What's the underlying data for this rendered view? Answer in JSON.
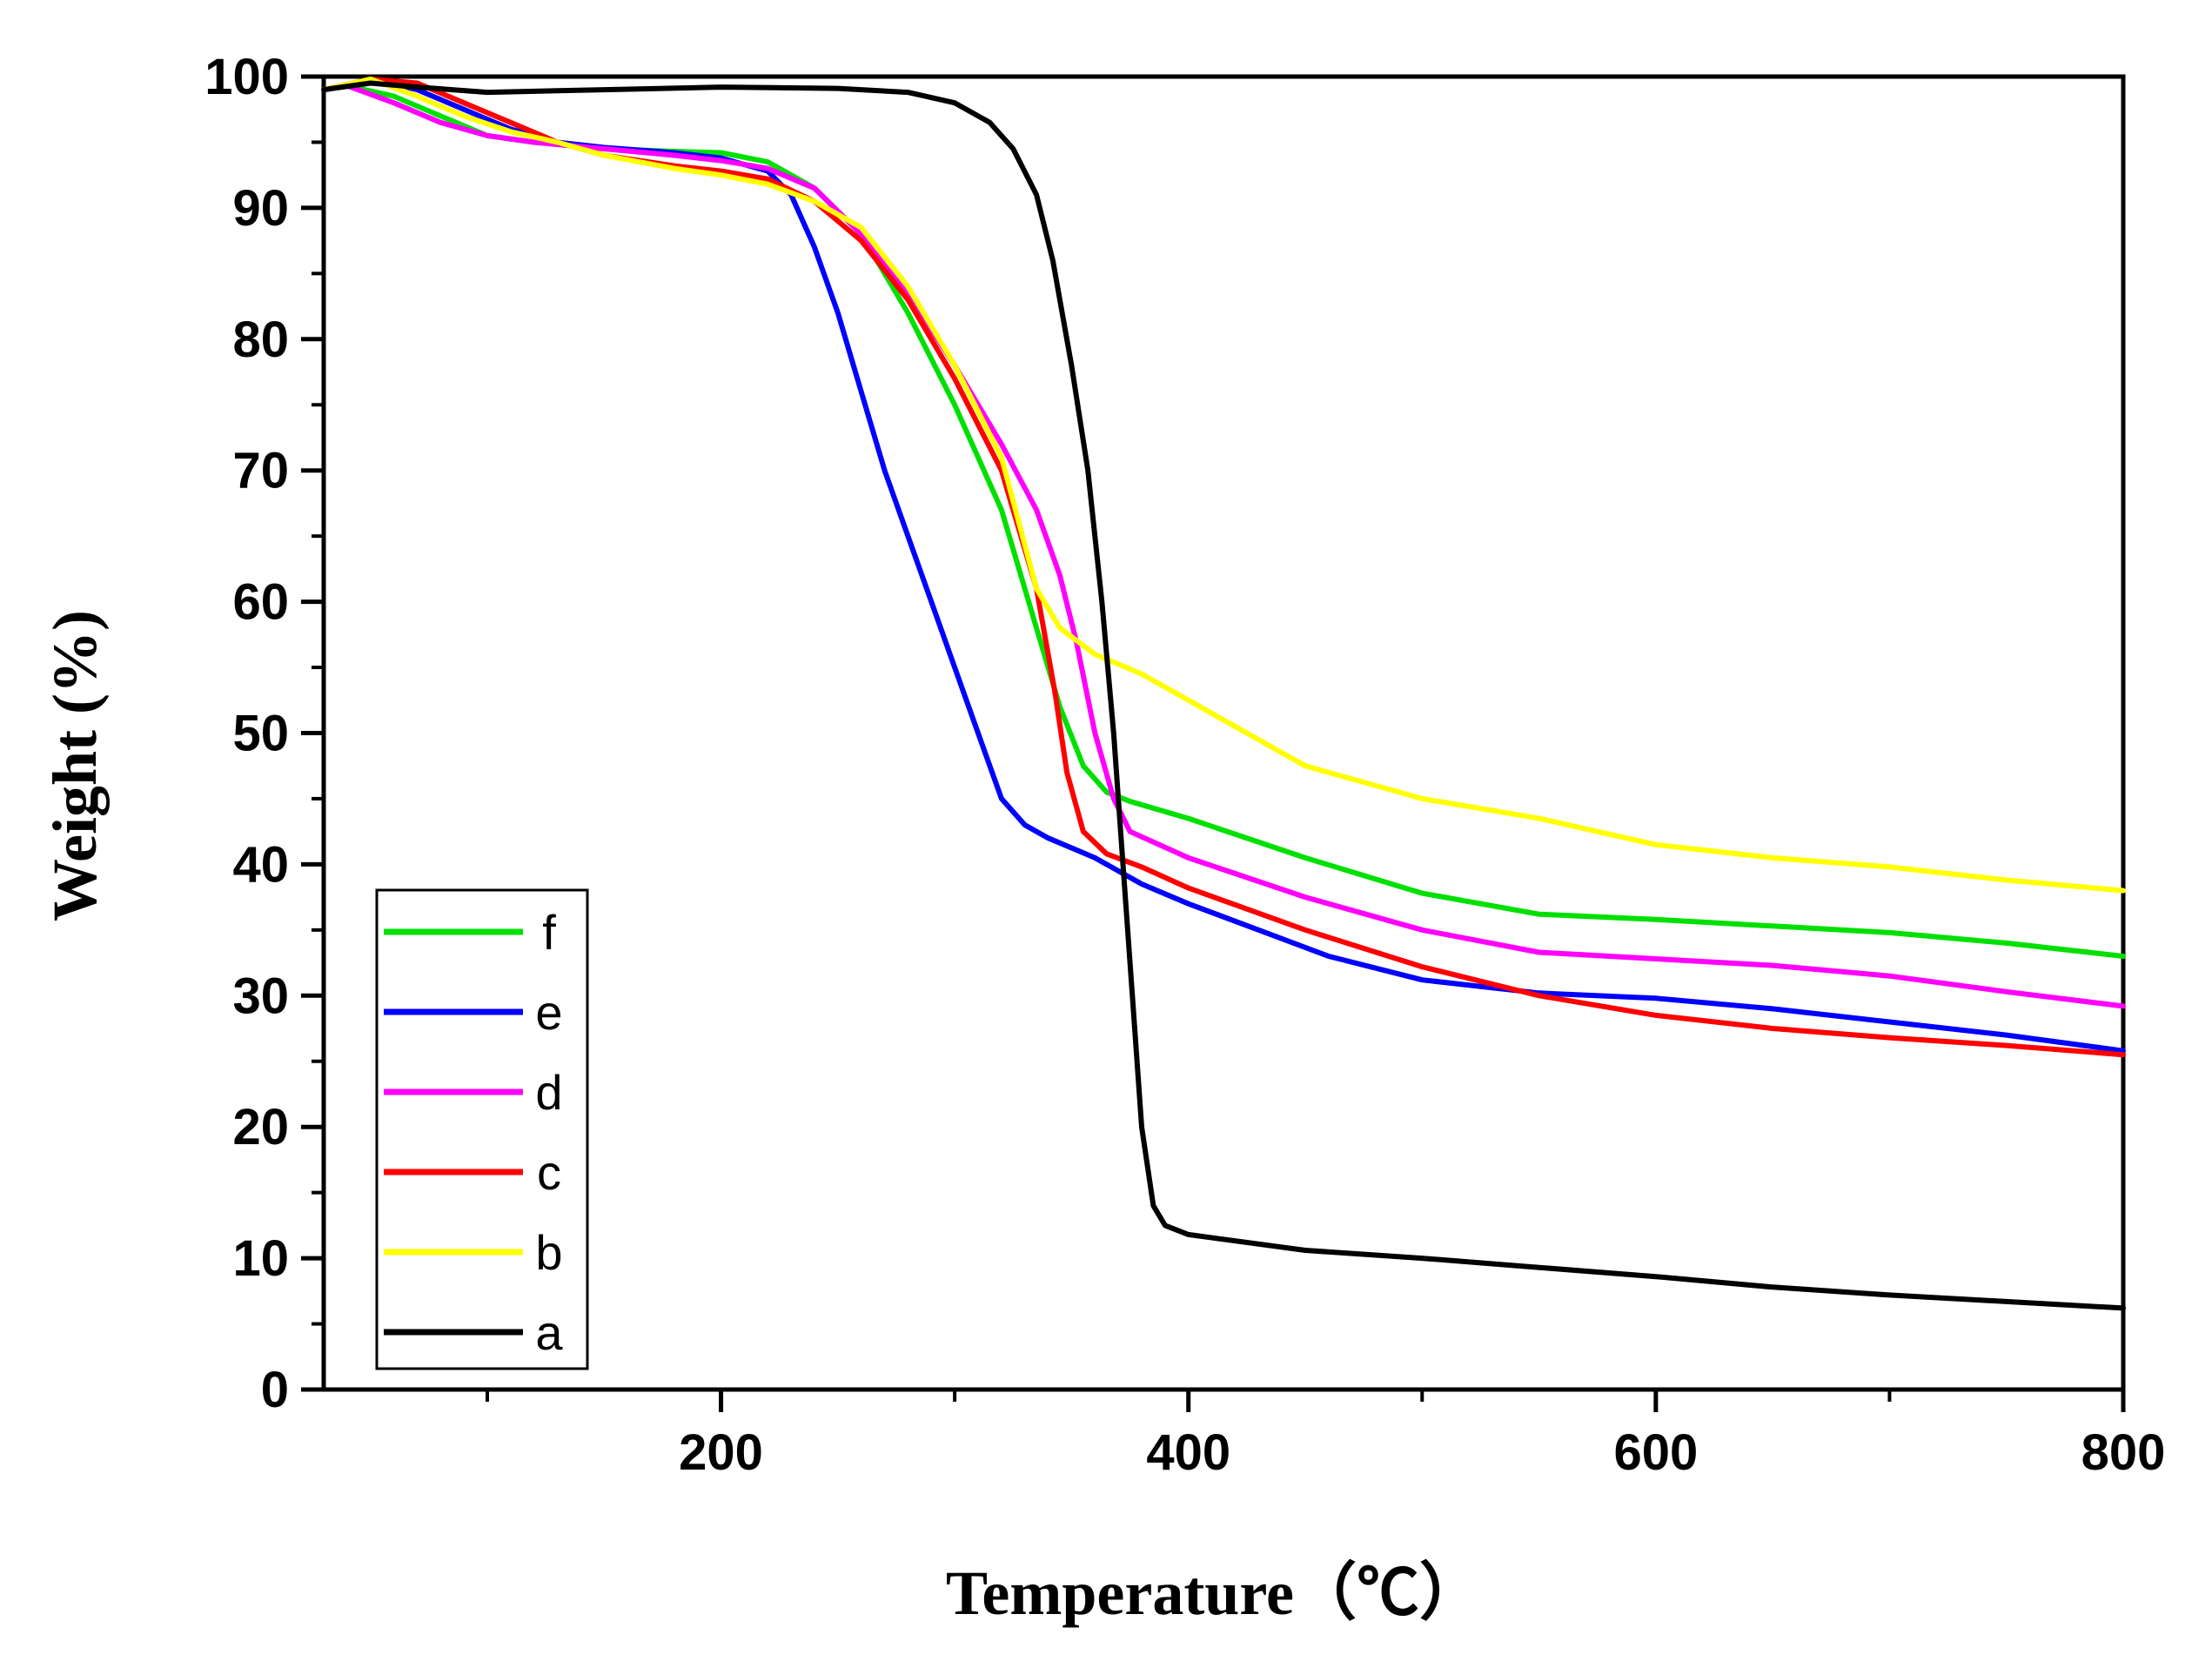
{
  "chart_data": {
    "type": "line",
    "title": "",
    "xlabel": "Temperature（℃）",
    "ylabel": "Weight (%)",
    "xlim": [
      30,
      800
    ],
    "ylim": [
      0,
      100
    ],
    "x_ticks": [
      200,
      400,
      600,
      800
    ],
    "x_minor_ticks": [
      100,
      300,
      500,
      700
    ],
    "y_ticks": [
      0,
      10,
      20,
      30,
      40,
      50,
      60,
      70,
      80,
      90,
      100
    ],
    "x_tick_labels": [
      "200",
      "400",
      "600",
      "800"
    ],
    "y_tick_labels": [
      "0",
      "10",
      "20",
      "30",
      "40",
      "50",
      "60",
      "70",
      "80",
      "90",
      "100"
    ],
    "grid": false,
    "legend_position": "bottom-left",
    "series": [
      {
        "name": "f",
        "color": "#00e000",
        "points": [
          [
            30,
            99
          ],
          [
            40,
            99.3
          ],
          [
            60,
            98.5
          ],
          [
            80,
            97
          ],
          [
            100,
            95.5
          ],
          [
            120,
            95
          ],
          [
            150,
            94.5
          ],
          [
            180,
            94.3
          ],
          [
            200,
            94.2
          ],
          [
            220,
            93.5
          ],
          [
            240,
            91.5
          ],
          [
            260,
            88
          ],
          [
            280,
            82
          ],
          [
            300,
            75
          ],
          [
            320,
            67
          ],
          [
            335,
            58
          ],
          [
            345,
            52
          ],
          [
            355,
            47.5
          ],
          [
            365,
            45.5
          ],
          [
            375,
            44.8
          ],
          [
            400,
            43.5
          ],
          [
            450,
            40.5
          ],
          [
            500,
            37.8
          ],
          [
            550,
            36.2
          ],
          [
            600,
            35.8
          ],
          [
            650,
            35.3
          ],
          [
            700,
            34.8
          ],
          [
            750,
            34
          ],
          [
            800,
            33
          ]
        ]
      },
      {
        "name": "e",
        "color": "#0000ff",
        "points": [
          [
            30,
            99
          ],
          [
            50,
            99.8
          ],
          [
            70,
            99
          ],
          [
            90,
            97.5
          ],
          [
            110,
            96
          ],
          [
            130,
            95
          ],
          [
            150,
            94.6
          ],
          [
            180,
            94.2
          ],
          [
            200,
            93.8
          ],
          [
            220,
            92.8
          ],
          [
            230,
            91
          ],
          [
            240,
            87
          ],
          [
            250,
            82
          ],
          [
            260,
            76
          ],
          [
            270,
            70
          ],
          [
            280,
            65
          ],
          [
            290,
            60
          ],
          [
            300,
            55
          ],
          [
            310,
            50
          ],
          [
            320,
            45
          ],
          [
            330,
            43
          ],
          [
            340,
            42
          ],
          [
            360,
            40.5
          ],
          [
            380,
            38.5
          ],
          [
            400,
            37
          ],
          [
            430,
            35
          ],
          [
            460,
            33
          ],
          [
            500,
            31.2
          ],
          [
            550,
            30.2
          ],
          [
            600,
            29.8
          ],
          [
            650,
            29
          ],
          [
            700,
            28
          ],
          [
            750,
            27
          ],
          [
            800,
            25.8
          ]
        ]
      },
      {
        "name": "d",
        "color": "#ff00ff",
        "points": [
          [
            30,
            99
          ],
          [
            40,
            99.3
          ],
          [
            60,
            98
          ],
          [
            80,
            96.5
          ],
          [
            100,
            95.5
          ],
          [
            120,
            95
          ],
          [
            150,
            94.5
          ],
          [
            180,
            94
          ],
          [
            200,
            93.6
          ],
          [
            220,
            93
          ],
          [
            240,
            91.5
          ],
          [
            260,
            88
          ],
          [
            280,
            83.5
          ],
          [
            300,
            78
          ],
          [
            320,
            72
          ],
          [
            335,
            67
          ],
          [
            345,
            62
          ],
          [
            352,
            57
          ],
          [
            360,
            50
          ],
          [
            368,
            45
          ],
          [
            375,
            42.5
          ],
          [
            400,
            40.5
          ],
          [
            450,
            37.5
          ],
          [
            500,
            35
          ],
          [
            550,
            33.3
          ],
          [
            600,
            32.8
          ],
          [
            650,
            32.3
          ],
          [
            700,
            31.5
          ],
          [
            750,
            30.3
          ],
          [
            800,
            29.2
          ]
        ]
      },
      {
        "name": "c",
        "color": "#ff0000",
        "points": [
          [
            30,
            99
          ],
          [
            50,
            99.8
          ],
          [
            70,
            99.5
          ],
          [
            90,
            98
          ],
          [
            110,
            96.5
          ],
          [
            130,
            95
          ],
          [
            150,
            94
          ],
          [
            180,
            93.2
          ],
          [
            200,
            92.8
          ],
          [
            220,
            92.2
          ],
          [
            240,
            90.5
          ],
          [
            260,
            87.5
          ],
          [
            280,
            83
          ],
          [
            300,
            77
          ],
          [
            320,
            70
          ],
          [
            335,
            61
          ],
          [
            343,
            53
          ],
          [
            348,
            47
          ],
          [
            355,
            42.5
          ],
          [
            365,
            40.8
          ],
          [
            380,
            39.8
          ],
          [
            400,
            38.2
          ],
          [
            450,
            35
          ],
          [
            500,
            32.2
          ],
          [
            550,
            30
          ],
          [
            600,
            28.5
          ],
          [
            650,
            27.5
          ],
          [
            700,
            26.8
          ],
          [
            750,
            26.2
          ],
          [
            800,
            25.5
          ]
        ]
      },
      {
        "name": "b",
        "color": "#ffff00",
        "points": [
          [
            30,
            99
          ],
          [
            50,
            99.8
          ],
          [
            70,
            98.5
          ],
          [
            90,
            97
          ],
          [
            110,
            95.8
          ],
          [
            130,
            95
          ],
          [
            150,
            94
          ],
          [
            180,
            93
          ],
          [
            200,
            92.5
          ],
          [
            220,
            91.8
          ],
          [
            240,
            90.5
          ],
          [
            260,
            88.5
          ],
          [
            280,
            84
          ],
          [
            300,
            78
          ],
          [
            320,
            71
          ],
          [
            335,
            61
          ],
          [
            345,
            58
          ],
          [
            360,
            56
          ],
          [
            380,
            54.5
          ],
          [
            400,
            52.5
          ],
          [
            450,
            47.5
          ],
          [
            500,
            45
          ],
          [
            550,
            43.5
          ],
          [
            600,
            41.5
          ],
          [
            650,
            40.5
          ],
          [
            700,
            39.8
          ],
          [
            750,
            38.8
          ],
          [
            800,
            38
          ]
        ]
      },
      {
        "name": "a",
        "color": "#000000",
        "points": [
          [
            30,
            99
          ],
          [
            50,
            99.5
          ],
          [
            70,
            99.2
          ],
          [
            100,
            98.8
          ],
          [
            150,
            99
          ],
          [
            200,
            99.2
          ],
          [
            250,
            99.1
          ],
          [
            280,
            98.8
          ],
          [
            300,
            98
          ],
          [
            315,
            96.5
          ],
          [
            325,
            94.5
          ],
          [
            335,
            91
          ],
          [
            342,
            86
          ],
          [
            350,
            78
          ],
          [
            357,
            70
          ],
          [
            363,
            60
          ],
          [
            368,
            50
          ],
          [
            372,
            40
          ],
          [
            376,
            30
          ],
          [
            380,
            20
          ],
          [
            385,
            14
          ],
          [
            390,
            12.5
          ],
          [
            400,
            11.8
          ],
          [
            450,
            10.6
          ],
          [
            500,
            10
          ],
          [
            550,
            9.3
          ],
          [
            600,
            8.6
          ],
          [
            650,
            7.8
          ],
          [
            700,
            7.2
          ],
          [
            750,
            6.7
          ],
          [
            800,
            6.2
          ]
        ]
      }
    ]
  }
}
